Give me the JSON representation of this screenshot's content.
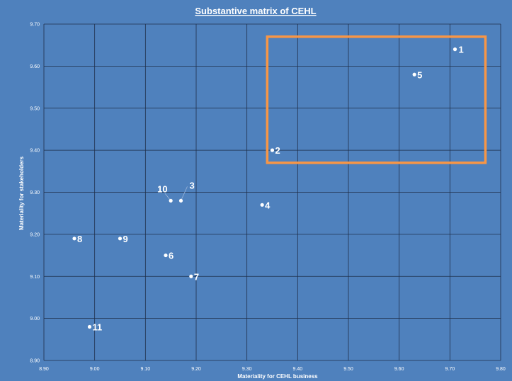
{
  "chart_data": {
    "type": "scatter",
    "title": "Substantive matrix of CEHL",
    "xlabel": "Materiality for CEHL business",
    "ylabel": "Materiality for stakeholders",
    "xlim": [
      8.9,
      9.8
    ],
    "ylim": [
      8.9,
      9.7
    ],
    "x_ticks": [
      "8.90",
      "9.00",
      "9.10",
      "9.20",
      "9.30",
      "9.40",
      "9.50",
      "9.60",
      "9.70",
      "9.80"
    ],
    "y_ticks": [
      "8.90",
      "9.00",
      "9.10",
      "9.20",
      "9.30",
      "9.40",
      "9.50",
      "9.60",
      "9.70"
    ],
    "grid": true,
    "points": [
      {
        "label": "1",
        "x": 9.71,
        "y": 9.64
      },
      {
        "label": "2",
        "x": 9.35,
        "y": 9.4
      },
      {
        "label": "3",
        "x": 9.17,
        "y": 9.28
      },
      {
        "label": "4",
        "x": 9.33,
        "y": 9.27
      },
      {
        "label": "5",
        "x": 9.63,
        "y": 9.58
      },
      {
        "label": "6",
        "x": 9.14,
        "y": 9.15
      },
      {
        "label": "7",
        "x": 9.19,
        "y": 9.1
      },
      {
        "label": "8",
        "x": 8.96,
        "y": 9.19
      },
      {
        "label": "9",
        "x": 9.05,
        "y": 9.19
      },
      {
        "label": "10",
        "x": 9.15,
        "y": 9.28
      },
      {
        "label": "11",
        "x": 8.99,
        "y": 8.98
      }
    ],
    "highlight_region": {
      "x": [
        9.34,
        9.77
      ],
      "y": [
        9.37,
        9.67
      ],
      "color": "#f79646"
    },
    "colors": {
      "background": "#4f81bd",
      "grid": "#1f2f4a",
      "point": "#ffffff",
      "text": "#ffffff"
    }
  }
}
